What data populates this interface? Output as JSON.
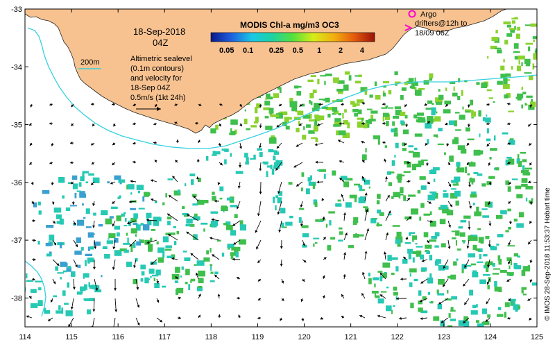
{
  "map": {
    "date_line": "18-Sep-2018",
    "time_line": "04Z",
    "colorbar_title": "MODIS Chl-a mg/m3 OC3",
    "colorbar_labels": [
      "0.05",
      "0.1",
      "0.25",
      "0.5",
      "1",
      "2",
      "4"
    ],
    "colorbar_values": [
      0.05,
      0.1,
      0.25,
      0.5,
      1,
      2,
      4
    ],
    "colorbar_range": [
      0.03,
      6
    ],
    "colorbar_scale": "log",
    "colorbar_colors": [
      "#0a1a8a",
      "#1e5fe0",
      "#19c7e6",
      "#1ed3a3",
      "#55e03c",
      "#d6ec18",
      "#f2b010",
      "#e55a0c",
      "#9a1208"
    ],
    "legend_isobath": "200m",
    "legend_altimetry_lines": [
      "Altimetric sealevel",
      "(0.1m contours)",
      "and velocity for",
      "18-Sep 04Z",
      "0.5m/s (1kt 24h)"
    ],
    "legend_argo": "Argo",
    "legend_drifters_lines": [
      "drifters@12h to",
      "18/09 06Z"
    ],
    "credit": "© IMOS 28-Sep-2018 11:53:37 Hobart time",
    "x_ticks": [
      114,
      115,
      116,
      117,
      118,
      119,
      120,
      121,
      122,
      123,
      124,
      125
    ],
    "x_tick_labels": [
      "114",
      "115",
      "116",
      "117",
      "118",
      "119",
      "120",
      "121",
      "122",
      "123",
      "124",
      "125"
    ],
    "y_ticks": [
      -33,
      -34,
      -35,
      -36,
      -37,
      -38
    ],
    "y_tick_labels": [
      "-33",
      "-34",
      "-35",
      "-36",
      "-37",
      "-38"
    ],
    "lon_range": [
      114,
      125
    ],
    "lat_range": [
      -38.5,
      -33
    ],
    "colors": {
      "land": "#f7c290",
      "isobath": "#33d0e0",
      "argo": "#ff00cc",
      "drifter": "#ff00cc",
      "arrow": "#000000",
      "chl_cyan": "#26c9b4",
      "chl_green": "#3fbf4c",
      "chl_lime": "#8ad22e"
    }
  }
}
